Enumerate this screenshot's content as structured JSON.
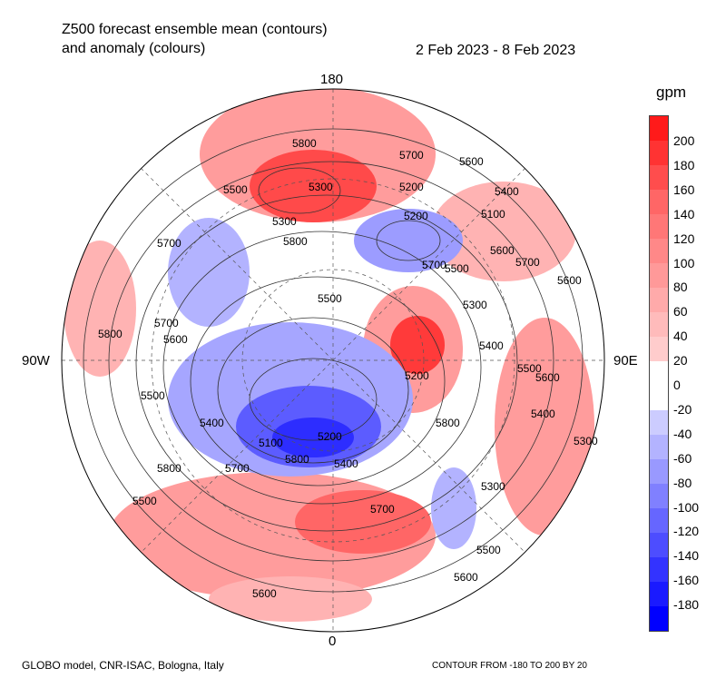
{
  "title_line1": "Z500 forecast ensemble mean (contours)",
  "title_line2": "and anomaly (colours)",
  "period": "2 Feb 2023 - 8 Feb 2023",
  "unit": "gpm",
  "longitude_labels": {
    "top": "180",
    "left": "90W",
    "right": "90E",
    "bottom": "0"
  },
  "footer_left": "GLOBO model, CNR-ISAC, Bologna, Italy",
  "footer_right": "CONTOUR FROM -180 TO 200 BY 20",
  "legend": {
    "ticks": [
      "200",
      "180",
      "160",
      "140",
      "120",
      "100",
      "80",
      "60",
      "40",
      "20",
      "0",
      "-20",
      "-40",
      "-60",
      "-80",
      "-100",
      "-120",
      "-140",
      "-160",
      "-180"
    ],
    "colors": [
      "#ff1a1a",
      "#ff3333",
      "#ff4d4d",
      "#ff6666",
      "#ff7777",
      "#ff8888",
      "#ff9999",
      "#ffaaaa",
      "#ffbbbb",
      "#ffcccc",
      "#ffffff",
      "#ffffff",
      "#ccccff",
      "#b3b3ff",
      "#9999ff",
      "#8080ff",
      "#6666ff",
      "#4d4dff",
      "#3333ff",
      "#1a1aff",
      "#0000ff"
    ]
  },
  "contour_labels": [
    "5800",
    "5700",
    "5600",
    "5500",
    "5400",
    "5300",
    "5200",
    "5100",
    "5700",
    "5800",
    "5500",
    "5600",
    "5300",
    "5400",
    "5200",
    "5500",
    "5700",
    "5600",
    "5800",
    "5700",
    "5600",
    "5500",
    "5400",
    "5300",
    "5200",
    "5100",
    "5300",
    "5500",
    "5600",
    "5700",
    "5800",
    "5700",
    "5800",
    "5500",
    "5600",
    "5400",
    "5300",
    "5200",
    "5400",
    "5500",
    "5600",
    "5700",
    "5800"
  ]
}
